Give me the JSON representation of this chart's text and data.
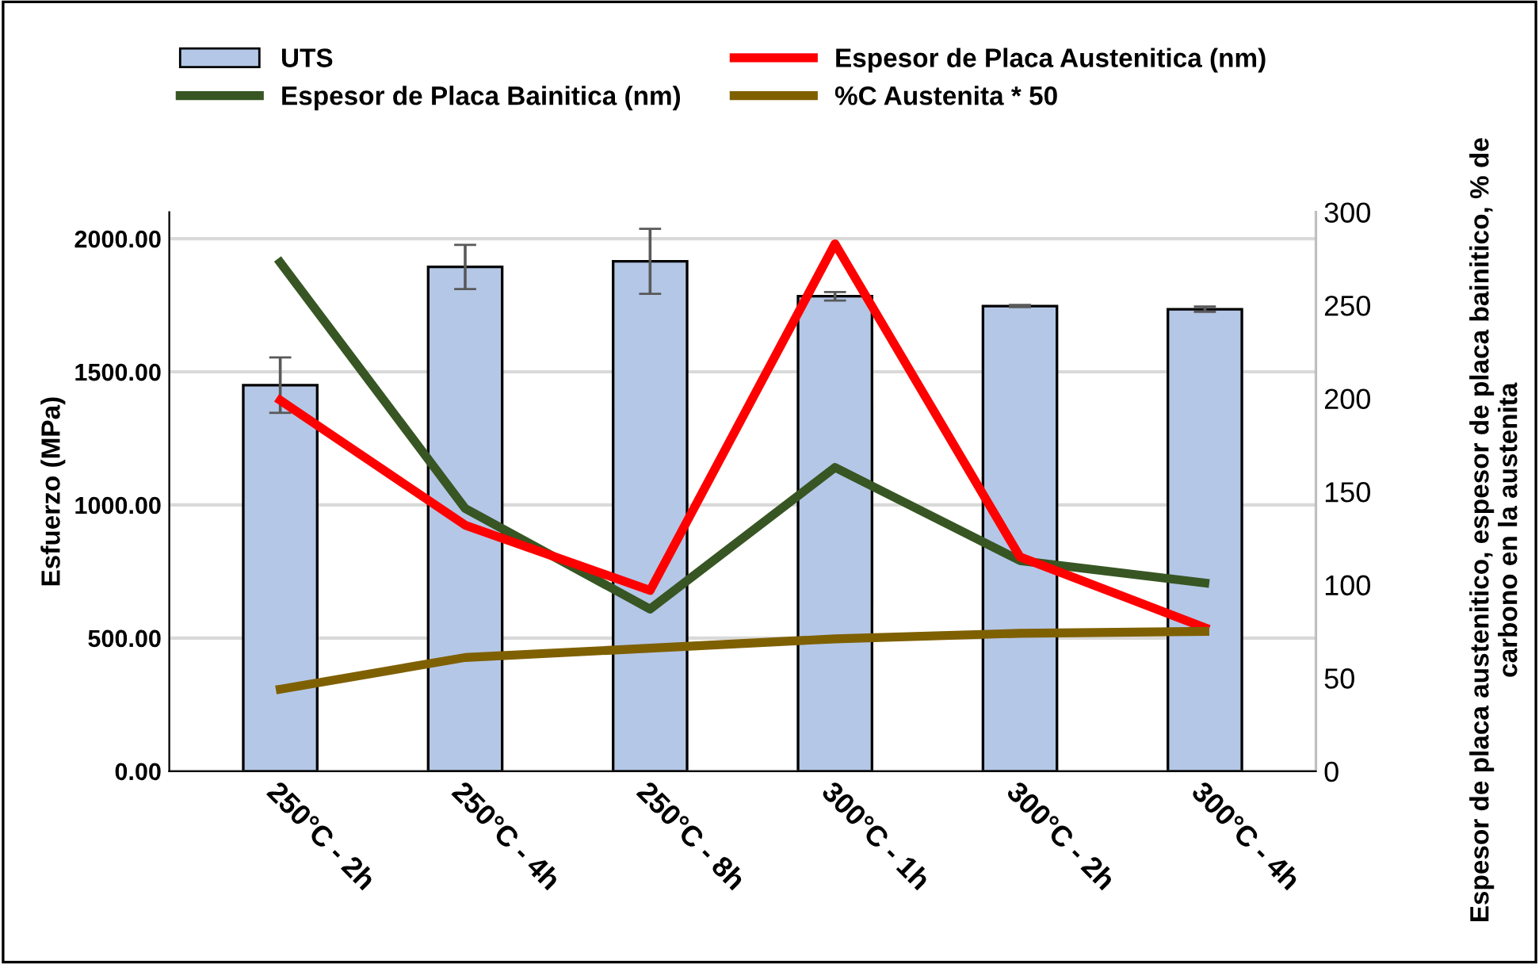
{
  "chart_data": {
    "type": "bar",
    "categories": [
      "250°C - 2h",
      "250°C - 4h",
      "250°C - 8h",
      "300°C - 1h",
      "300°C - 2h",
      "300°C - 4h"
    ],
    "ylabel": "Esfuerzo (MPa)",
    "y2label": "Espesor de placa austenitico, espesor de placa bainitico, % de carbono en la austenita",
    "series": [
      {
        "name": "UTS",
        "type": "bar",
        "color": "#b4c7e7",
        "values": [
          1450,
          1894,
          1915,
          1784,
          1747,
          1735
        ],
        "errors": [
          104,
          83,
          122,
          16,
          4,
          10
        ]
      },
      {
        "name": "Espesor de Placa Bainitica (nm)",
        "type": "line",
        "axis": "y2",
        "color": "#375623",
        "values": [
          273,
          141,
          87,
          163,
          113,
          101
        ]
      },
      {
        "name": "Espesor de Placa Austenitica (nm)",
        "type": "line",
        "axis": "y2",
        "color": "#ff0000",
        "values": [
          199,
          132,
          97,
          283,
          115,
          77
        ]
      },
      {
        "name": "%C Austenita * 50",
        "type": "line",
        "axis": "y2",
        "color": "#7f6000",
        "values": [
          44,
          61,
          66,
          71,
          74,
          75
        ]
      }
    ],
    "ylim": [
      0,
      2100
    ],
    "yticks": [
      {
        "value": 0,
        "label": "0.00"
      },
      {
        "value": 500,
        "label": "500.00"
      },
      {
        "value": 1000,
        "label": "1000.00"
      },
      {
        "value": 1500,
        "label": "1500.00"
      },
      {
        "value": 2000,
        "label": "2000.00"
      }
    ],
    "y2lim": [
      0,
      300
    ],
    "y2ticks": [
      0,
      50,
      100,
      150,
      200,
      250,
      300
    ],
    "grid": "y",
    "legend": "top",
    "marker": "none",
    "line_style": "solid"
  }
}
